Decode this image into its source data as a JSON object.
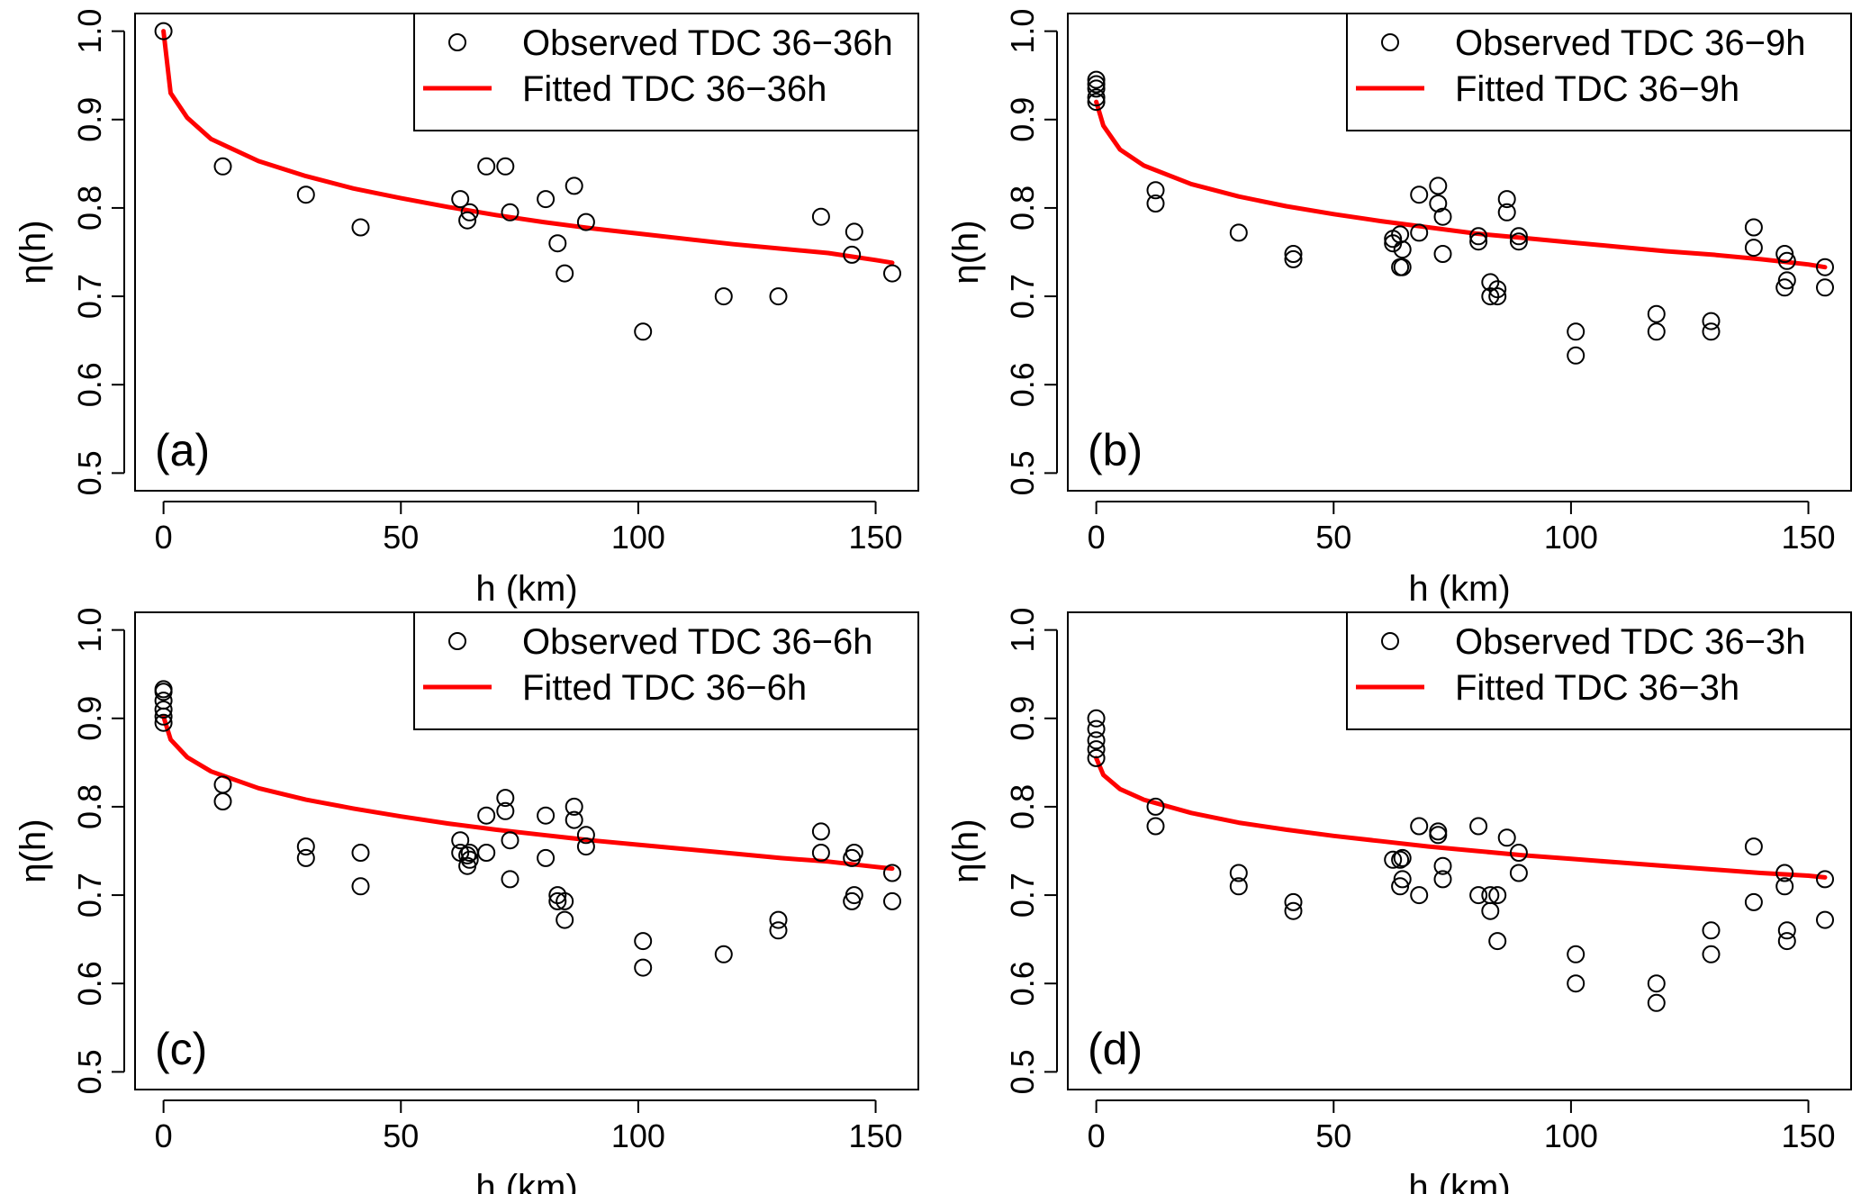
{
  "figure": {
    "x_axis_label": "h (km)",
    "y_axis_label": "η(h)",
    "x_ticks": [
      0,
      50,
      100,
      150
    ],
    "y_ticks": [
      0.5,
      0.6,
      0.7,
      0.8,
      0.9,
      1.0
    ],
    "y_tick_labels": [
      "0.5",
      "0.6",
      "0.7",
      "0.8",
      "0.9",
      "1.0"
    ]
  },
  "chart_data": [
    {
      "type": "scatter",
      "panel": "(a)",
      "xlabel": "h (km)",
      "ylabel": "η(h)",
      "xlim": [
        -6,
        159
      ],
      "ylim": [
        0.48,
        1.02
      ],
      "legend": {
        "position": "top-right",
        "observed": "Observed TDC 36−36h",
        "fitted": "Fitted TDC 36−36h"
      },
      "colors": {
        "observed": "#000000",
        "fitted": "#ff0000"
      },
      "observed": {
        "x": [
          0,
          12.5,
          30,
          41.5,
          62.5,
          64,
          64.5,
          68,
          72,
          73,
          80.5,
          83,
          84.5,
          86.5,
          89,
          101,
          118,
          129.5,
          138.5,
          145,
          145.5,
          153.5
        ],
        "y": [
          1.0,
          0.847,
          0.815,
          0.778,
          0.81,
          0.786,
          0.795,
          0.847,
          0.847,
          0.795,
          0.81,
          0.76,
          0.726,
          0.825,
          0.784,
          0.66,
          0.7,
          0.7,
          0.79,
          0.747,
          0.773,
          0.726
        ]
      },
      "fitted": {
        "x": [
          0,
          1.5,
          5,
          10,
          20,
          30,
          40,
          50,
          60,
          70,
          80,
          90,
          100,
          110,
          120,
          130,
          140,
          150,
          153.5
        ],
        "y": [
          1.0,
          0.93,
          0.902,
          0.878,
          0.853,
          0.836,
          0.822,
          0.811,
          0.801,
          0.792,
          0.784,
          0.777,
          0.771,
          0.765,
          0.759,
          0.754,
          0.749,
          0.741,
          0.738
        ]
      }
    },
    {
      "type": "scatter",
      "panel": "(b)",
      "xlabel": "h (km)",
      "ylabel": "η(h)",
      "xlim": [
        -6,
        159
      ],
      "ylim": [
        0.48,
        1.02
      ],
      "legend": {
        "position": "top-right",
        "observed": "Observed TDC 36−9h",
        "fitted": "Fitted TDC 36−9h"
      },
      "colors": {
        "observed": "#000000",
        "fitted": "#ff0000"
      },
      "observed": {
        "x": [
          0,
          0,
          0,
          0,
          0,
          12.5,
          12.5,
          30,
          41.5,
          41.5,
          62.5,
          62.5,
          64,
          64,
          64.5,
          64.5,
          68,
          68,
          72,
          72,
          73,
          73,
          80.5,
          80.5,
          83,
          83,
          84.5,
          84.5,
          86.5,
          86.5,
          89,
          89,
          101,
          101,
          118,
          118,
          129.5,
          129.5,
          138.5,
          138.5,
          145,
          145,
          145.5,
          145.5,
          153.5,
          153.5
        ],
        "y": [
          0.945,
          0.935,
          0.925,
          0.92,
          0.94,
          0.82,
          0.805,
          0.772,
          0.748,
          0.742,
          0.765,
          0.76,
          0.733,
          0.77,
          0.753,
          0.733,
          0.815,
          0.772,
          0.825,
          0.805,
          0.79,
          0.748,
          0.768,
          0.762,
          0.716,
          0.7,
          0.708,
          0.7,
          0.81,
          0.795,
          0.768,
          0.762,
          0.66,
          0.633,
          0.68,
          0.66,
          0.672,
          0.66,
          0.778,
          0.755,
          0.748,
          0.71,
          0.74,
          0.718,
          0.733,
          0.71
        ]
      },
      "fitted": {
        "x": [
          0,
          1.5,
          5,
          10,
          20,
          30,
          40,
          50,
          60,
          70,
          80,
          90,
          100,
          110,
          120,
          130,
          140,
          150,
          153.5
        ],
        "y": [
          0.92,
          0.893,
          0.866,
          0.848,
          0.827,
          0.813,
          0.802,
          0.793,
          0.785,
          0.778,
          0.771,
          0.766,
          0.761,
          0.756,
          0.751,
          0.747,
          0.742,
          0.736,
          0.733
        ]
      }
    },
    {
      "type": "scatter",
      "panel": "(c)",
      "xlabel": "h (km)",
      "ylabel": "η(h)",
      "xlim": [
        -6,
        159
      ],
      "ylim": [
        0.48,
        1.02
      ],
      "legend": {
        "position": "top-right",
        "observed": "Observed TDC 36−6h",
        "fitted": "Fitted TDC 36−6h"
      },
      "colors": {
        "observed": "#000000",
        "fitted": "#ff0000"
      },
      "observed": {
        "x": [
          0,
          0,
          0,
          0,
          0,
          0,
          12.5,
          12.5,
          30,
          30,
          41.5,
          41.5,
          62.5,
          62.5,
          64,
          64,
          64.5,
          64.5,
          68,
          68,
          72,
          72,
          73,
          73,
          80.5,
          80.5,
          83,
          83,
          84.5,
          84.5,
          86.5,
          86.5,
          89,
          89,
          101,
          101,
          118,
          129.5,
          129.5,
          138.5,
          138.5,
          145,
          145,
          145.5,
          145.5,
          153.5,
          153.5
        ],
        "y": [
          0.933,
          0.93,
          0.92,
          0.91,
          0.902,
          0.895,
          0.825,
          0.806,
          0.755,
          0.742,
          0.748,
          0.71,
          0.762,
          0.748,
          0.745,
          0.733,
          0.748,
          0.74,
          0.79,
          0.748,
          0.81,
          0.795,
          0.762,
          0.718,
          0.79,
          0.742,
          0.7,
          0.693,
          0.693,
          0.672,
          0.8,
          0.785,
          0.768,
          0.755,
          0.648,
          0.618,
          0.633,
          0.672,
          0.66,
          0.772,
          0.748,
          0.742,
          0.693,
          0.748,
          0.7,
          0.725,
          0.693
        ]
      },
      "fitted": {
        "x": [
          0,
          1.5,
          5,
          10,
          20,
          30,
          40,
          50,
          60,
          70,
          80,
          90,
          100,
          110,
          120,
          130,
          140,
          150,
          153.5
        ],
        "y": [
          0.902,
          0.876,
          0.856,
          0.84,
          0.821,
          0.808,
          0.798,
          0.789,
          0.781,
          0.774,
          0.768,
          0.762,
          0.757,
          0.752,
          0.747,
          0.742,
          0.738,
          0.732,
          0.73
        ]
      }
    },
    {
      "type": "scatter",
      "panel": "(d)",
      "xlabel": "h (km)",
      "ylabel": "η(h)",
      "xlim": [
        -6,
        159
      ],
      "ylim": [
        0.48,
        1.02
      ],
      "legend": {
        "position": "top-right",
        "observed": "Observed TDC 36−3h",
        "fitted": "Fitted TDC 36−3h"
      },
      "colors": {
        "observed": "#000000",
        "fitted": "#ff0000"
      },
      "observed": {
        "x": [
          0,
          0,
          0,
          0,
          0,
          12.5,
          12.5,
          30,
          30,
          41.5,
          41.5,
          62.5,
          64,
          64,
          64.5,
          64.5,
          68,
          68,
          72,
          72,
          73,
          73,
          80.5,
          80.5,
          83,
          83,
          84.5,
          84.5,
          86.5,
          89,
          89,
          101,
          101,
          118,
          118,
          129.5,
          129.5,
          138.5,
          138.5,
          145,
          145,
          145.5,
          145.5,
          153.5,
          153.5
        ],
        "y": [
          0.9,
          0.888,
          0.875,
          0.865,
          0.855,
          0.8,
          0.778,
          0.725,
          0.71,
          0.692,
          0.682,
          0.74,
          0.74,
          0.71,
          0.742,
          0.718,
          0.778,
          0.7,
          0.772,
          0.768,
          0.733,
          0.718,
          0.778,
          0.7,
          0.7,
          0.682,
          0.7,
          0.648,
          0.765,
          0.748,
          0.725,
          0.633,
          0.6,
          0.6,
          0.578,
          0.66,
          0.633,
          0.755,
          0.692,
          0.725,
          0.71,
          0.66,
          0.648,
          0.718,
          0.672
        ]
      },
      "fitted": {
        "x": [
          0,
          1.5,
          5,
          10,
          20,
          30,
          40,
          50,
          60,
          70,
          80,
          90,
          100,
          110,
          120,
          130,
          140,
          150,
          153.5
        ],
        "y": [
          0.855,
          0.836,
          0.82,
          0.808,
          0.793,
          0.782,
          0.774,
          0.767,
          0.761,
          0.755,
          0.75,
          0.745,
          0.741,
          0.737,
          0.733,
          0.729,
          0.725,
          0.722,
          0.72
        ]
      }
    }
  ]
}
